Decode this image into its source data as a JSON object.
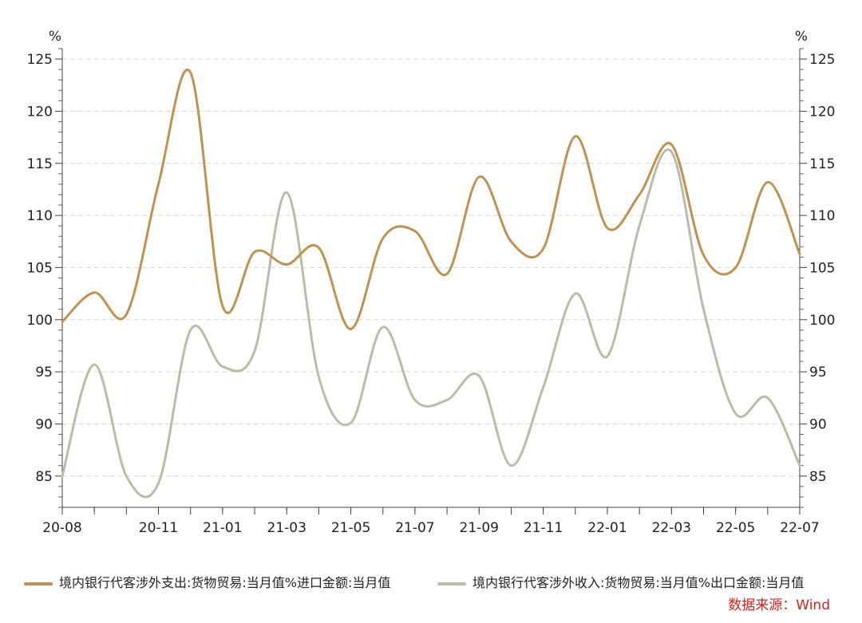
{
  "chart_data": {
    "type": "line",
    "y_unit_left": "%",
    "y_unit_right": "%",
    "ylim": [
      82,
      126
    ],
    "yticks": [
      85,
      90,
      95,
      100,
      105,
      110,
      115,
      120,
      125
    ],
    "x_tick_labels": [
      "20-08",
      "20-11",
      "21-01",
      "21-03",
      "21-05",
      "21-07",
      "21-09",
      "21-11",
      "22-01",
      "22-03",
      "22-05",
      "22-07"
    ],
    "x": [
      "20-08",
      "20-09",
      "20-10",
      "20-11",
      "20-12",
      "21-01",
      "21-02",
      "21-03",
      "21-04",
      "21-05",
      "21-06",
      "21-07",
      "21-08",
      "21-09",
      "21-10",
      "21-11",
      "21-12",
      "22-01",
      "22-02",
      "22-03",
      "22-04",
      "22-05",
      "22-06",
      "22-07"
    ],
    "grid": true,
    "legend_position": "bottom",
    "series": [
      {
        "name": "境内银行代客涉外支出:货物贸易:当月值%进口金额:当月值",
        "color": "#c0924f",
        "values": [
          99.8,
          102.6,
          100.5,
          113.0,
          123.7,
          101.3,
          106.5,
          105.3,
          106.9,
          99.1,
          107.8,
          108.5,
          104.4,
          113.7,
          107.5,
          106.8,
          117.6,
          108.8,
          112.0,
          116.8,
          106.2,
          105.0,
          113.2,
          106.3
        ]
      },
      {
        "name": "境内银行代客涉外收入:货物贸易:当月值%出口金额:当月值",
        "color": "#b9bca7",
        "values": [
          85.0,
          95.7,
          85.0,
          84.3,
          99.0,
          95.5,
          97.0,
          112.2,
          94.5,
          90.1,
          99.3,
          92.3,
          92.3,
          94.6,
          86.0,
          93.5,
          102.5,
          96.5,
          109.0,
          116.1,
          101.0,
          91.0,
          92.5,
          86.0
        ]
      }
    ]
  },
  "source_text": "数据来源：Wind"
}
